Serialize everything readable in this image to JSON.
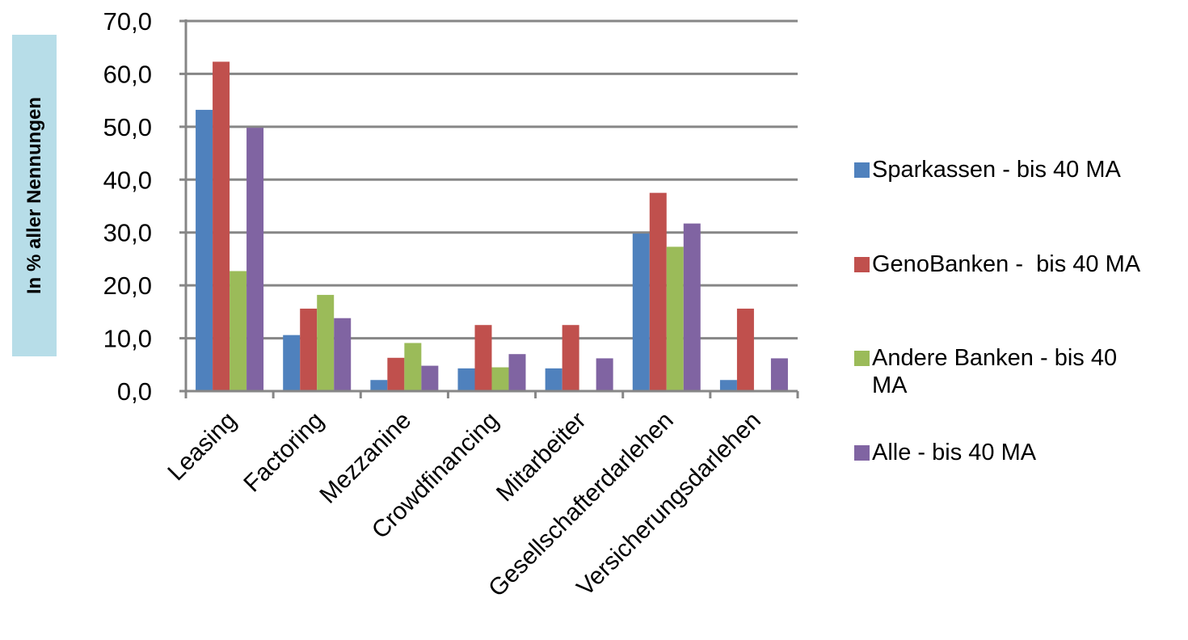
{
  "chart_data": {
    "type": "bar",
    "ylabel": "In % aller Nennungen",
    "categories": [
      "Leasing",
      "Factoring",
      "Mezzanine",
      "Crowdfinancing",
      "Mitarbeiter",
      "Gesellschafterdarlehen",
      "Versicherungsdarlehen"
    ],
    "series": [
      {
        "name": "Sparkassen - bis 40 MA",
        "color": "#4f81bd",
        "values": [
          53.2,
          10.6,
          2.1,
          4.3,
          4.3,
          29.8,
          2.1
        ]
      },
      {
        "name": "GenoBanken -  bis 40 MA",
        "color": "#c0504d",
        "values": [
          62.3,
          15.6,
          6.3,
          12.5,
          12.5,
          37.5,
          15.6
        ]
      },
      {
        "name": "Andere Banken - bis 40 MA",
        "color": "#9bbb59",
        "values": [
          22.7,
          18.2,
          9.1,
          4.5,
          0,
          27.3,
          0
        ]
      },
      {
        "name": "Alle - bis 40 MA",
        "color": "#8064a2",
        "values": [
          49.8,
          13.8,
          4.8,
          7.0,
          6.2,
          31.7,
          6.2
        ]
      }
    ],
    "ylim": [
      0,
      70
    ],
    "yticks": [
      "0,0",
      "10,0",
      "20,0",
      "30,0",
      "40,0",
      "50,0",
      "60,0",
      "70,0"
    ],
    "grid": true,
    "legend": "right"
  }
}
